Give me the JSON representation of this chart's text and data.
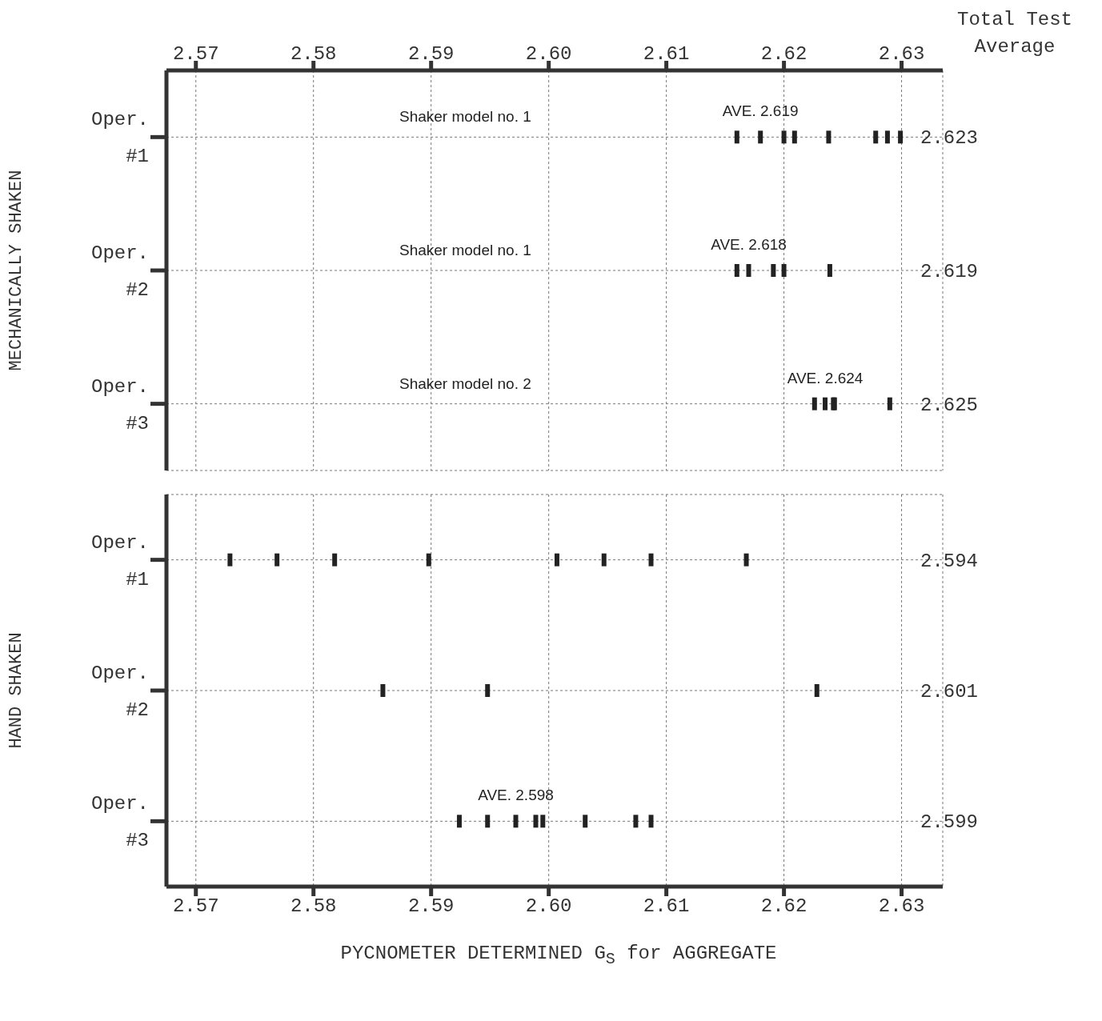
{
  "chart_data": [
    {
      "type": "scatter",
      "orientation": "horizontal",
      "ylabel": "MECHANICALLY SHAKEN",
      "y2label": "Total Test Average",
      "categories": [
        "Oper. #1",
        "Oper. #2",
        "Oper. #3"
      ],
      "y2_categories": [
        "2.623",
        "2.619",
        "2.625"
      ],
      "xlim": [
        2.5675,
        2.6335
      ],
      "xticks": [
        2.57,
        2.58,
        2.59,
        {
          "value": 2.6,
          "label": "2.60"
        },
        2.61,
        2.62,
        2.63
      ],
      "grid": true,
      "series": [
        {
          "color": "#222222",
          "values": [
            2.616,
            2.616,
            2.6226
          ]
        },
        {
          "color": "#222222",
          "values": [
            2.618,
            2.617,
            2.6235
          ]
        },
        {
          "color": "#222222",
          "values": [
            2.62,
            2.6191,
            2.6242
          ]
        },
        {
          "color": "#222222",
          "values": [
            2.6209,
            2.62,
            2.6243
          ]
        },
        {
          "color": "#222222",
          "values": [
            2.6238,
            2.6239,
            2.629
          ]
        },
        {
          "color": "#222222",
          "values": [
            2.6278,
            null,
            null
          ]
        },
        {
          "color": "#222222",
          "values": [
            2.6288,
            null,
            null
          ]
        },
        {
          "color": "#222222",
          "values": [
            2.6299,
            null,
            null
          ]
        }
      ],
      "annotations": [
        {
          "text": "AVE. 2.619",
          "x": 2.618,
          "y": "Oper. #1"
        },
        {
          "text": "AVE. 2.618",
          "x": 2.617,
          "y": "Oper. #2"
        },
        {
          "text": "AVE. 2.624",
          "x": 2.6235,
          "y": "Oper. #3"
        },
        "Shaker model no. 1",
        "Shaker model no. 1",
        "Shaker model no. 2"
      ]
    },
    {
      "type": "scatter",
      "orientation": "horizontal",
      "ylabel": "HAND SHAKEN",
      "xlabel": "PYCNOMETER DETERMINED G$_{S}$ for AGGREGATE",
      "categories": [
        "Oper. #1",
        "Oper. #2",
        "Oper. #3"
      ],
      "y2_categories": [
        "2.594",
        "2.601",
        "2.599"
      ],
      "xlim": [
        2.5675,
        2.6335
      ],
      "xticks": [
        2.57,
        2.58,
        2.59,
        {
          "value": 2.6,
          "label": "2.60"
        },
        2.61,
        2.62,
        2.63
      ],
      "grid": true,
      "series": [
        {
          "color": "#222222",
          "values": [
            2.5729,
            2.5859,
            2.5924
          ]
        },
        {
          "color": "#222222",
          "values": [
            2.5769,
            2.5948,
            2.5948
          ]
        },
        {
          "color": "#222222",
          "values": [
            2.5818,
            2.6228,
            2.5972
          ]
        },
        {
          "color": "#222222",
          "values": [
            2.5898,
            null,
            2.5989
          ]
        },
        {
          "color": "#222222",
          "values": [
            2.6007,
            null,
            2.5995
          ]
        },
        {
          "color": "#222222",
          "values": [
            2.6047,
            null,
            2.6031
          ]
        },
        {
          "color": "#222222",
          "values": [
            2.6087,
            null,
            2.6074
          ]
        },
        {
          "color": "#222222",
          "values": [
            2.6168,
            null,
            2.6087
          ]
        }
      ],
      "annotations": [
        {
          "text": "AVE. 2.598",
          "x": 2.5972,
          "y": "Oper. #3"
        }
      ]
    }
  ]
}
